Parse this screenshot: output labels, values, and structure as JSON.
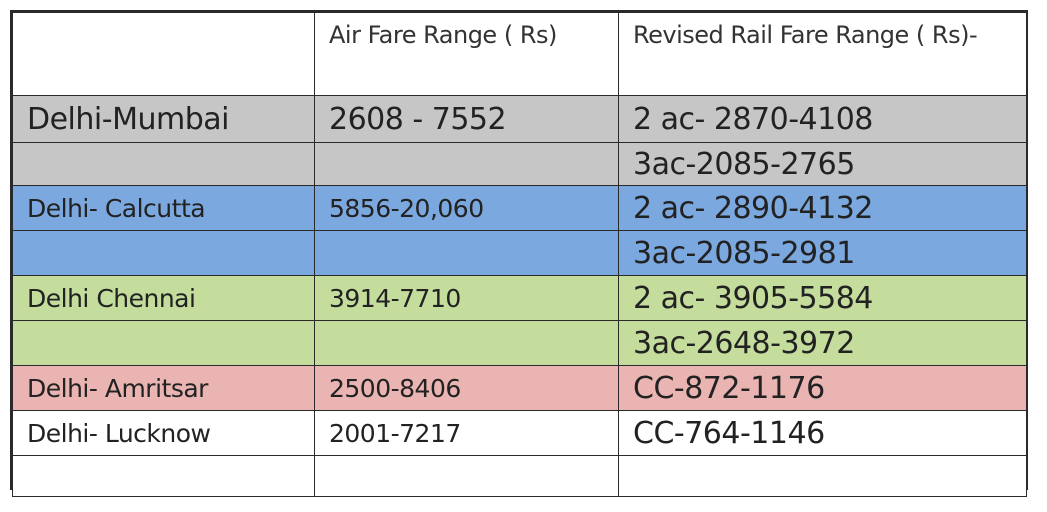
{
  "headers": [
    "",
    "Air Fare Range  ( Rs)",
    "Revised Rail Fare Range ( Rs)-"
  ],
  "rows": [
    {
      "route": "Delhi-Mumbai",
      "air": "2608 - 7552",
      "rail": "2 ac- 2870-4108",
      "color": "#c6c6c6"
    },
    {
      "route": "",
      "air": "",
      "rail": "3ac-2085-2765",
      "color": "#c6c6c6"
    },
    {
      "route": "Delhi- Calcutta",
      "air": "5856-20,060",
      "rail": "2 ac- 2890-4132",
      "color": "#7ba8de"
    },
    {
      "route": "",
      "air": "",
      "rail": "3ac-2085-2981",
      "color": "#7ba8de"
    },
    {
      "route": "Delhi Chennai",
      "air": "3914-7710",
      "rail": "2 ac- 3905-5584",
      "color": "#c4dc9c"
    },
    {
      "route": "",
      "air": "",
      "rail": "3ac-2648-3972",
      "color": "#c4dc9c"
    },
    {
      "route": "Delhi- Amritsar",
      "air": "2500-8406",
      "rail": "CC-872-1176",
      "color": "#e9b4b1"
    },
    {
      "route": "Delhi- Lucknow",
      "air": "2001-7217",
      "rail": "CC-764-1146",
      "color": "#ffffff"
    },
    {
      "route": "",
      "air": "",
      "rail": "",
      "color": "#ffffff"
    }
  ]
}
